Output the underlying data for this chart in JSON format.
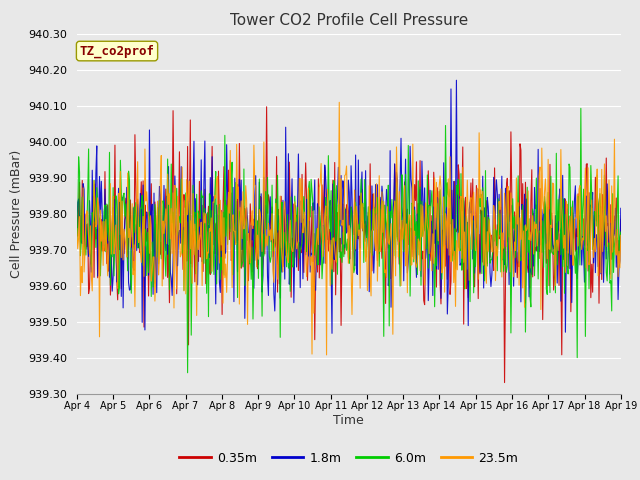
{
  "title": "Tower CO2 Profile Cell Pressure",
  "xlabel": "Time",
  "ylabel": "Cell Pressure (mBar)",
  "annotation": "TZ_co2prof",
  "ylim": [
    939.3,
    940.3
  ],
  "series": [
    "0.35m",
    "1.8m",
    "6.0m",
    "23.5m"
  ],
  "colors": [
    "#cc0000",
    "#0000cc",
    "#00cc00",
    "#ff9900"
  ],
  "x_tick_labels": [
    "Apr 4",
    "Apr 5",
    "Apr 6",
    "Apr 7",
    "Apr 8",
    "Apr 9",
    "Apr 10",
    "Apr 11",
    "Apr 12",
    "Apr 13",
    "Apr 14",
    "Apr 15",
    "Apr 16",
    "Apr 17",
    "Apr 18",
    "Apr 19"
  ],
  "n_points": 600,
  "seed": 42,
  "mean": 939.75,
  "std": 0.09,
  "spike_std": 0.12,
  "spike_prob": 0.12,
  "bg_color": "#e8e8e8",
  "plot_bg_color": "#e8e8e8",
  "grid_color": "#ffffff",
  "annotation_bg": "#ffffcc",
  "annotation_border": "#999900",
  "annotation_text_color": "#880000",
  "yticks": [
    939.3,
    939.4,
    939.5,
    939.6,
    939.7,
    939.8,
    939.9,
    940.0,
    940.1,
    940.2,
    940.3
  ]
}
